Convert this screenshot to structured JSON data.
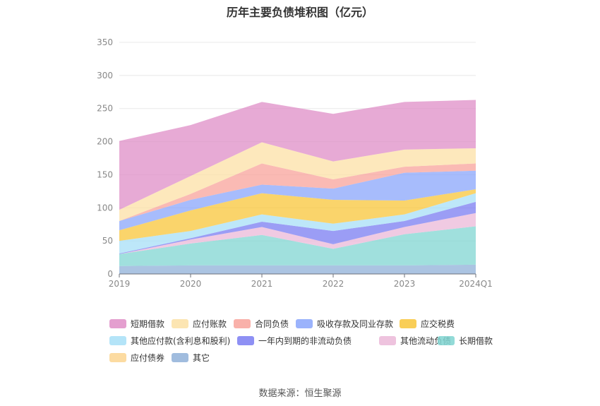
{
  "title": "历年主要负债堆积图（亿元）",
  "source": "数据来源：恒生聚源",
  "chart_data": {
    "type": "area",
    "stacked": true,
    "x": [
      "2019",
      "2020",
      "2021",
      "2022",
      "2023",
      "2024Q1"
    ],
    "ylim": [
      0,
      350
    ],
    "yticks": [
      0,
      50,
      100,
      150,
      200,
      250,
      300,
      350
    ],
    "grid": true,
    "legend_position": "bottom",
    "series": [
      {
        "name": "其它",
        "color": "#8fb0d8",
        "values": [
          12,
          13,
          13,
          13,
          13,
          14
        ]
      },
      {
        "name": "应付债券",
        "color": "#fcd590",
        "values": [
          0,
          0,
          0,
          0,
          0,
          0
        ]
      },
      {
        "name": "长期借款",
        "color": "#80d5d1",
        "values": [
          18,
          33,
          46,
          25,
          47,
          58
        ]
      },
      {
        "name": "其他流动负债",
        "color": "#ebb8d8",
        "values": [
          0,
          6,
          12,
          7,
          11,
          20
        ]
      },
      {
        "name": "一年内到期的非流动负债",
        "color": "#7a7cf2",
        "values": [
          1,
          2,
          8,
          20,
          9,
          17
        ]
      },
      {
        "name": "其他应付款(含利息和股利)",
        "color": "#a7dff7",
        "values": [
          19,
          11,
          11,
          11,
          10,
          13
        ]
      },
      {
        "name": "应交税费",
        "color": "#f8c53a",
        "values": [
          16,
          31,
          32,
          36,
          21,
          6
        ]
      },
      {
        "name": "吸收存款及同业存款",
        "color": "#8aa6fb",
        "values": [
          14,
          16,
          13,
          17,
          42,
          28
        ]
      },
      {
        "name": "合同负债",
        "color": "#f8a39b",
        "values": [
          0,
          9,
          32,
          14,
          9,
          11
        ]
      },
      {
        "name": "应付账款",
        "color": "#fce0a5",
        "values": [
          17,
          27,
          32,
          27,
          26,
          23
        ]
      },
      {
        "name": "短期借款",
        "color": "#df8ec7",
        "values": [
          104,
          77,
          61,
          72,
          72,
          73
        ]
      }
    ]
  },
  "legend_order": [
    "短期借款",
    "应付账款",
    "合同负债",
    "吸收存款及同业存款",
    "应交税费",
    "其他应付款(含利息和股利)",
    "一年内到期的非流动负债",
    "其他流动负债",
    "长期借款",
    "应付债券",
    "其它"
  ]
}
